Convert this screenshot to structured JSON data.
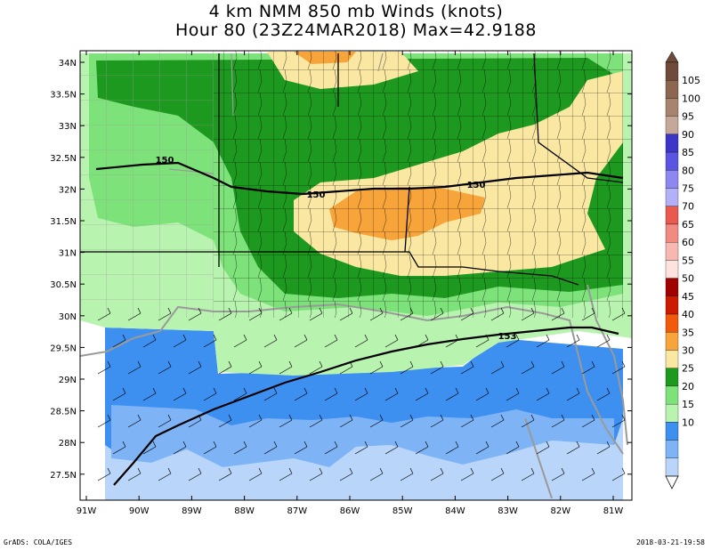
{
  "title": {
    "line1": "4 km NMM 850 mb Winds (knots)",
    "line2": "Hour 80 (23Z24MAR2018) Max=42.9188"
  },
  "lat_labels": [
    "34N",
    "33.5N",
    "33N",
    "32.5N",
    "32N",
    "31.5N",
    "31N",
    "30.5N",
    "30N",
    "29.5N",
    "29N",
    "28.5N",
    "28N",
    "27.5N"
  ],
  "lon_labels": [
    "91W",
    "90W",
    "89W",
    "88W",
    "87W",
    "86W",
    "85W",
    "84W",
    "83W",
    "82W",
    "81W"
  ],
  "colorbar": {
    "labels": [
      "105",
      "100",
      "95",
      "90",
      "85",
      "80",
      "75",
      "70",
      "65",
      "60",
      "55",
      "50",
      "45",
      "40",
      "35",
      "30",
      "25",
      "20",
      "15",
      "10"
    ],
    "colors": [
      "#6e4a3a",
      "#8c6651",
      "#a8836e",
      "#c6a89a",
      "#3d35c8",
      "#5a55e0",
      "#8c88f0",
      "#b3b0f8",
      "#e85a50",
      "#f08a82",
      "#f7b8b2",
      "#fde2dd",
      "#a00000",
      "#cc1b00",
      "#f05a0a",
      "#f7a43a",
      "#f9e7a2",
      "#1e9920",
      "#7ee27a",
      "#b9f3b0",
      "#3d8ff0",
      "#7eb3f5",
      "#b9d6fa"
    ]
  },
  "contours": [
    {
      "label": "150"
    },
    {
      "label": "150"
    },
    {
      "label": "150"
    },
    {
      "label": "153"
    }
  ],
  "footer": {
    "left": "GrADS: COLA/IGES",
    "right": "2018-03-21-19:58"
  }
}
